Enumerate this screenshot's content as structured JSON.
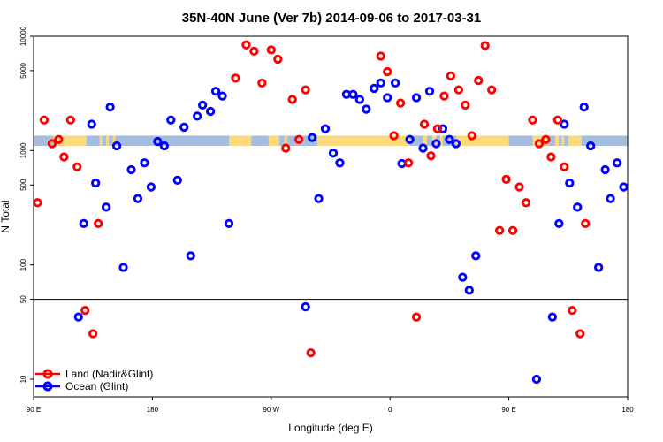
{
  "chart_data": {
    "type": "scatter",
    "title": "35N-40N June (Ver 7b)   2014-09-06 to 2017-03-31",
    "xlabel": "Longitude (deg E)",
    "ylabel": "N Total",
    "y_scale": "log",
    "ylim": [
      7,
      10000
    ],
    "xlim": [
      0,
      450
    ],
    "x_unit": "degrees traversed from 90 E",
    "x_ticks": [
      {
        "value": 0,
        "label": "90 E"
      },
      {
        "value": 90,
        "label": "180"
      },
      {
        "value": 180,
        "label": "90 W"
      },
      {
        "value": 270,
        "label": "0"
      },
      {
        "value": 360,
        "label": "90 E"
      },
      {
        "value": 450,
        "label": "180"
      }
    ],
    "y_ticks": [
      {
        "value": 10,
        "label": "10"
      },
      {
        "value": 50,
        "label": "50"
      },
      {
        "value": 100,
        "label": "100"
      },
      {
        "value": 500,
        "label": "500"
      },
      {
        "value": 1000,
        "label": "1000"
      },
      {
        "value": 5000,
        "label": "5000"
      },
      {
        "value": 10000,
        "label": "10000"
      }
    ],
    "reference_line_y": 50,
    "surface_band": {
      "y_low": 1100,
      "y_high": 1350,
      "colors": {
        "land": "#fcd97a",
        "ocean": "#a5bddf"
      },
      "land_ranges": [
        [
          15,
          40
        ],
        [
          50,
          52
        ],
        [
          55,
          57
        ],
        [
          60,
          62
        ],
        [
          148,
          165
        ],
        [
          178,
          186
        ],
        [
          190,
          192
        ],
        [
          215,
          285
        ],
        [
          295,
          298
        ],
        [
          302,
          305
        ],
        [
          308,
          310
        ],
        [
          320,
          360
        ],
        [
          378,
          390
        ],
        [
          395,
          398
        ],
        [
          400,
          402
        ],
        [
          405,
          415
        ]
      ]
    },
    "series": [
      {
        "name": "Land (Nadir&Glint)",
        "color": "#ff0000",
        "points": [
          [
            3,
            350
          ],
          [
            8,
            1850
          ],
          [
            14,
            1150
          ],
          [
            19,
            1250
          ],
          [
            23,
            880
          ],
          [
            28,
            1850
          ],
          [
            33,
            720
          ],
          [
            39,
            40
          ],
          [
            45,
            25
          ],
          [
            49,
            230
          ],
          [
            153,
            4300
          ],
          [
            161,
            8400
          ],
          [
            167,
            7400
          ],
          [
            173,
            3900
          ],
          [
            180,
            7600
          ],
          [
            185,
            6300
          ],
          [
            191,
            1050
          ],
          [
            196,
            2800
          ],
          [
            201,
            1250
          ],
          [
            206,
            3400
          ],
          [
            210,
            17
          ],
          [
            263,
            6700
          ],
          [
            268,
            4900
          ],
          [
            273,
            1350
          ],
          [
            278,
            2600
          ],
          [
            284,
            780
          ],
          [
            290,
            35
          ],
          [
            296,
            1700
          ],
          [
            301,
            900
          ],
          [
            306,
            1550
          ],
          [
            311,
            3000
          ],
          [
            316,
            4500
          ],
          [
            322,
            3400
          ],
          [
            327,
            2500
          ],
          [
            332,
            1350
          ],
          [
            337,
            4100
          ],
          [
            342,
            8300
          ],
          [
            347,
            3400
          ],
          [
            353,
            200
          ],
          [
            358,
            560
          ],
          [
            363,
            200
          ],
          [
            368,
            480
          ],
          [
            373,
            350
          ],
          [
            378,
            1850
          ],
          [
            383,
            1150
          ],
          [
            388,
            1250
          ],
          [
            392,
            880
          ],
          [
            397,
            1850
          ],
          [
            402,
            720
          ],
          [
            408,
            40
          ],
          [
            414,
            25
          ],
          [
            418,
            230
          ]
        ]
      },
      {
        "name": "Ocean (Glint)",
        "color": "#0000ff",
        "points": [
          [
            34,
            35
          ],
          [
            38,
            230
          ],
          [
            44,
            1700
          ],
          [
            47,
            520
          ],
          [
            55,
            320
          ],
          [
            58,
            2400
          ],
          [
            63,
            1100
          ],
          [
            68,
            95
          ],
          [
            74,
            680
          ],
          [
            79,
            380
          ],
          [
            84,
            780
          ],
          [
            89,
            480
          ],
          [
            94,
            1200
          ],
          [
            99,
            1100
          ],
          [
            104,
            1850
          ],
          [
            109,
            550
          ],
          [
            114,
            1600
          ],
          [
            119,
            120
          ],
          [
            124,
            2000
          ],
          [
            128,
            2500
          ],
          [
            134,
            2200
          ],
          [
            138,
            3300
          ],
          [
            143,
            3000
          ],
          [
            148,
            230
          ],
          [
            206,
            43
          ],
          [
            211,
            1300
          ],
          [
            216,
            380
          ],
          [
            221,
            1550
          ],
          [
            227,
            950
          ],
          [
            232,
            780
          ],
          [
            237,
            3100
          ],
          [
            242,
            3100
          ],
          [
            247,
            2800
          ],
          [
            252,
            2300
          ],
          [
            258,
            3500
          ],
          [
            263,
            3900
          ],
          [
            268,
            2900
          ],
          [
            274,
            3900
          ],
          [
            279,
            770
          ],
          [
            285,
            1250
          ],
          [
            290,
            2900
          ],
          [
            295,
            1050
          ],
          [
            300,
            3300
          ],
          [
            305,
            1150
          ],
          [
            310,
            1550
          ],
          [
            315,
            1250
          ],
          [
            320,
            1150
          ],
          [
            325,
            78
          ],
          [
            330,
            60
          ],
          [
            335,
            120
          ],
          [
            381,
            10
          ],
          [
            393,
            35
          ],
          [
            398,
            230
          ],
          [
            402,
            1700
          ],
          [
            406,
            520
          ],
          [
            412,
            320
          ],
          [
            417,
            2400
          ],
          [
            422,
            1100
          ],
          [
            428,
            95
          ],
          [
            433,
            680
          ],
          [
            437,
            380
          ],
          [
            442,
            780
          ],
          [
            447,
            480
          ]
        ]
      }
    ],
    "legend": {
      "position": "bottom-left",
      "entries": [
        {
          "label": "Land (Nadir&Glint)",
          "color": "#ff0000"
        },
        {
          "label": "Ocean (Glint)",
          "color": "#0000ff"
        }
      ]
    }
  }
}
